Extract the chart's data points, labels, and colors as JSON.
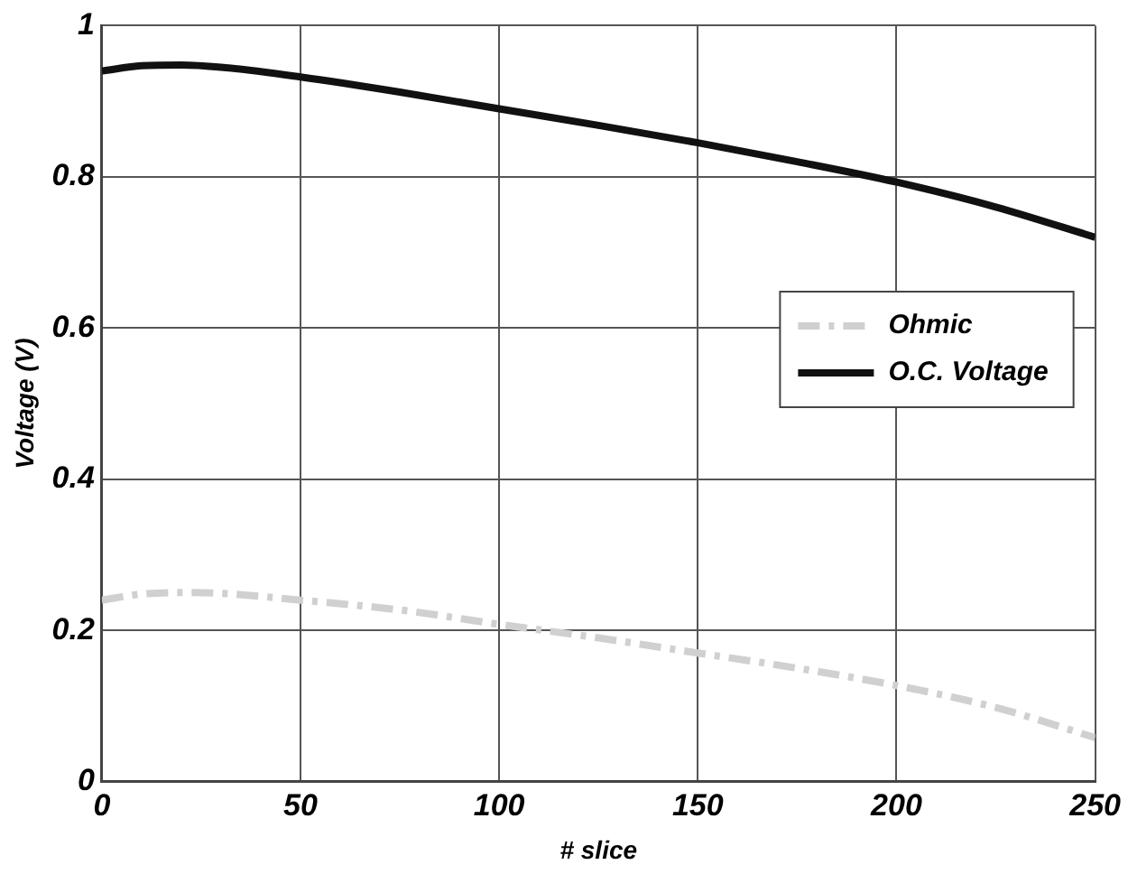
{
  "chart_data": {
    "type": "line",
    "xlabel": "# slice",
    "ylabel": "Voltage (V)",
    "xlim": [
      0,
      250
    ],
    "xticks": [
      0,
      50,
      100,
      150,
      200,
      250
    ],
    "ylim": [
      0,
      1
    ],
    "yticks": [
      0,
      0.2,
      0.4,
      0.6,
      0.8,
      1
    ],
    "grid": true,
    "legend": "right",
    "marker": "none",
    "x": [
      0,
      10,
      20,
      30,
      50,
      75,
      100,
      125,
      150,
      175,
      200,
      225,
      250
    ],
    "series": [
      {
        "name": "Ohmic",
        "color": "#d0d0d0",
        "line_style": "dashed",
        "values": [
          0.24,
          0.248,
          0.25,
          0.249,
          0.24,
          0.227,
          0.208,
          0.19,
          0.17,
          0.15,
          0.127,
          0.098,
          0.058
        ]
      },
      {
        "name": "O.C. Voltage",
        "color": "#111111",
        "line_style": "solid",
        "values": [
          0.94,
          0.947,
          0.948,
          0.945,
          0.932,
          0.912,
          0.89,
          0.868,
          0.845,
          0.82,
          0.793,
          0.76,
          0.72
        ]
      }
    ]
  }
}
